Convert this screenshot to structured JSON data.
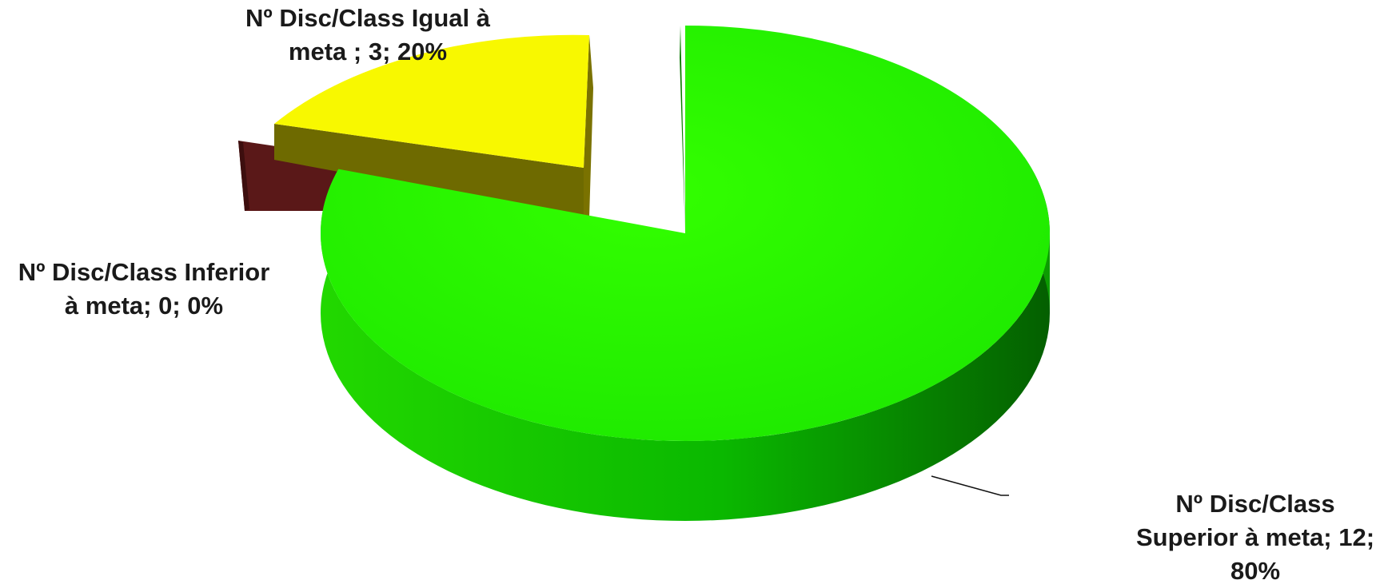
{
  "chart_data": {
    "type": "pie",
    "title": "",
    "style": "3d-exploded",
    "slices": [
      {
        "label": "Nº Disc/Class Superior à meta",
        "value": 12,
        "percent": 80,
        "color": "#22ee00",
        "side_color": "#0e9a00"
      },
      {
        "label": "Nº Disc/Class Inferior à meta",
        "value": 0,
        "percent": 0,
        "color": "#5a1818",
        "side_color": "#3d0e0e"
      },
      {
        "label": "Nº Disc/Class Igual à meta ",
        "value": 3,
        "percent": 20,
        "color": "#f8f800",
        "side_color": "#6e6a00"
      }
    ],
    "data_labels": {
      "igual_line1": "Nº Disc/Class Igual à",
      "igual_line2": "meta ; 3; 20%",
      "inferior_line1": "Nº Disc/Class Inferior",
      "inferior_line2": "à meta; 0; 0%",
      "superior_line1": "Nº Disc/Class",
      "superior_line2": "Superior à meta; 12;",
      "superior_line3": "80%"
    }
  }
}
